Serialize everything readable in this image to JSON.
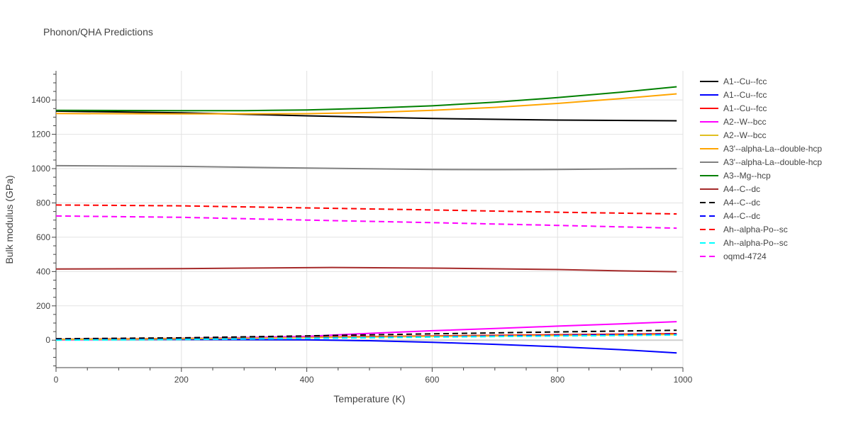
{
  "chart_data": {
    "type": "line",
    "title": "Phonon/QHA Predictions",
    "xlabel": "Temperature (K)",
    "ylabel": "Bulk modulus (GPa)",
    "xlim": [
      0,
      1000
    ],
    "ylim": [
      -160,
      1570
    ],
    "x_ticks": [
      0,
      200,
      400,
      600,
      800,
      1000
    ],
    "y_ticks": [
      0,
      200,
      400,
      600,
      800,
      1000,
      1200,
      1400
    ],
    "grid": true,
    "legend_position": "right",
    "series": [
      {
        "name": "A1--Cu--fcc",
        "color": "#000000",
        "dash": "solid",
        "x": [
          0,
          200,
          400,
          600,
          800,
          990
        ],
        "y": [
          1335,
          1325,
          1308,
          1292,
          1283,
          1279
        ]
      },
      {
        "name": "A1--Cu--fcc",
        "color": "#0000ff",
        "dash": "solid",
        "x": [
          0,
          200,
          400,
          500,
          600,
          700,
          800,
          900,
          990
        ],
        "y": [
          5,
          4,
          2,
          -3,
          -12,
          -24,
          -38,
          -55,
          -74
        ]
      },
      {
        "name": "A1--Cu--fcc",
        "color": "#ff0000",
        "dash": "solid",
        "x": [
          0,
          200,
          400,
          600,
          800,
          990
        ],
        "y": [
          5,
          10,
          17,
          25,
          32,
          38
        ]
      },
      {
        "name": "A2--W--bcc",
        "color": "#ff00ff",
        "dash": "solid",
        "x": [
          0,
          200,
          400,
          500,
          600,
          700,
          800,
          900,
          990
        ],
        "y": [
          2,
          8,
          22,
          40,
          55,
          68,
          82,
          95,
          108
        ]
      },
      {
        "name": "A2--W--bcc",
        "color": "#e0c020",
        "dash": "solid",
        "x": [
          0,
          200,
          400,
          600,
          800,
          990
        ],
        "y": [
          4,
          8,
          15,
          22,
          28,
          33
        ]
      },
      {
        "name": "A3'--alpha-La--double-hcp",
        "color": "#ffa500",
        "dash": "solid",
        "x": [
          0,
          200,
          400,
          500,
          600,
          700,
          800,
          900,
          990
        ],
        "y": [
          1321,
          1319,
          1320,
          1327,
          1340,
          1357,
          1380,
          1408,
          1436
        ]
      },
      {
        "name": "A3'--alpha-La--double-hcp",
        "color": "#808080",
        "dash": "solid",
        "x": [
          0,
          200,
          400,
          500,
          600,
          700,
          800,
          900,
          990
        ],
        "y": [
          1017,
          1013,
          1003,
          999,
          995,
          994,
          995,
          998,
          1000
        ]
      },
      {
        "name": "A3--Mg--hcp",
        "color": "#008000",
        "dash": "solid",
        "x": [
          0,
          200,
          300,
          400,
          500,
          600,
          700,
          800,
          900,
          990
        ],
        "y": [
          1340,
          1338,
          1338,
          1342,
          1352,
          1366,
          1387,
          1414,
          1445,
          1477
        ]
      },
      {
        "name": "A4--C--dc",
        "color": "#a52a2a",
        "dash": "solid",
        "x": [
          0,
          200,
          300,
          440,
          600,
          800,
          900,
          990
        ],
        "y": [
          415,
          417,
          420,
          424,
          420,
          412,
          404,
          399
        ]
      },
      {
        "name": "A4--C--dc",
        "color": "#000000",
        "dash": "dash",
        "x": [
          0,
          200,
          400,
          600,
          800,
          990
        ],
        "y": [
          8,
          14,
          25,
          37,
          48,
          58
        ]
      },
      {
        "name": "A4--C--dc",
        "color": "#0000ff",
        "dash": "dash",
        "x": [
          0,
          200,
          400,
          600,
          800,
          990
        ],
        "y": [
          2,
          6,
          12,
          20,
          28,
          35
        ]
      },
      {
        "name": "Ah--alpha-Po--sc",
        "color": "#ff0000",
        "dash": "dash",
        "x": [
          0,
          200,
          400,
          600,
          800,
          990
        ],
        "y": [
          788,
          783,
          771,
          759,
          746,
          736
        ]
      },
      {
        "name": "Ah--alpha-Po--sc",
        "color": "#00ffff",
        "dash": "dash",
        "x": [
          0,
          200,
          400,
          600,
          800,
          990
        ],
        "y": [
          0,
          4,
          10,
          18,
          24,
          30
        ]
      },
      {
        "name": "oqmd-4724",
        "color": "#ff00ff",
        "dash": "dash",
        "x": [
          0,
          200,
          400,
          600,
          800,
          990
        ],
        "y": [
          724,
          716,
          700,
          685,
          669,
          653
        ]
      }
    ]
  }
}
